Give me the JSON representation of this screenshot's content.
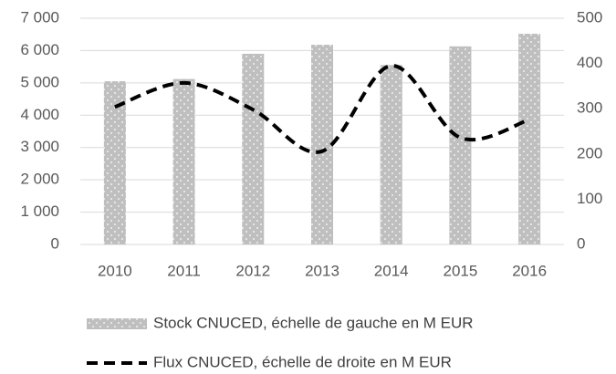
{
  "chart_data": {
    "type": "bar-line",
    "categories": [
      "2010",
      "2011",
      "2012",
      "2013",
      "2014",
      "2015",
      "2016"
    ],
    "series": [
      {
        "name": "Stock CNUCED, échelle de gauche en M EUR",
        "type": "bar",
        "color": "#bfbfbf",
        "values": [
          5050,
          5120,
          5900,
          6180,
          5550,
          6130,
          6520
        ]
      },
      {
        "name": "Flux CNUCED, échelle de droite en M EUR",
        "type": "line",
        "axis": "y2",
        "color": "#000000",
        "values": [
          304,
          357,
          298,
          206,
          395,
          236,
          276
        ]
      }
    ],
    "ylim": [
      0,
      7000
    ],
    "yticks": [
      0,
      {
        "value": 1000,
        "label": "1 000"
      },
      {
        "value": 2000,
        "label": "2 000"
      },
      {
        "value": 3000,
        "label": "3 000"
      },
      {
        "value": 4000,
        "label": "4 000"
      },
      {
        "value": 5000,
        "label": "5 000"
      },
      {
        "value": 6000,
        "label": "6 000"
      },
      {
        "value": 7000,
        "label": "7 000"
      }
    ],
    "y2lim": [
      0,
      500
    ],
    "y2ticks": [
      0,
      100,
      200,
      300,
      400,
      500
    ],
    "grid": true
  }
}
